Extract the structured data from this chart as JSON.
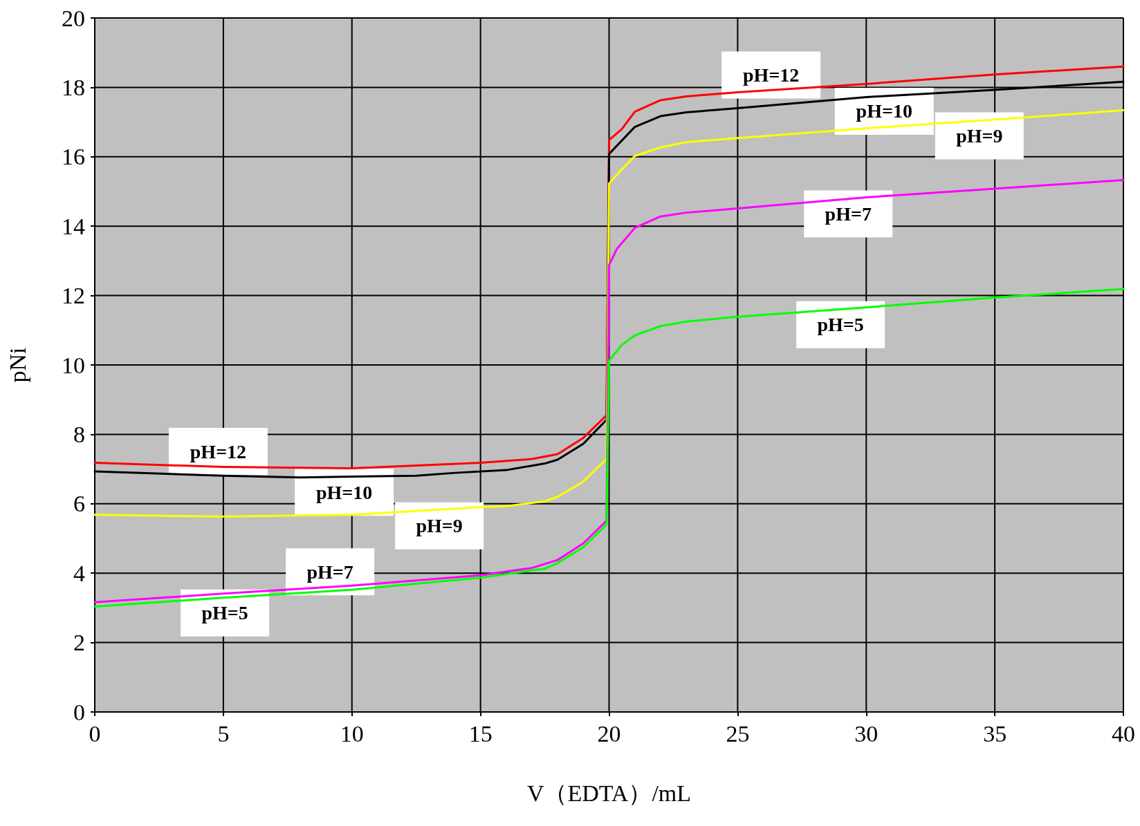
{
  "chart_data": {
    "type": "line",
    "xlabel": "V（EDTA）/mL",
    "ylabel": "pNi",
    "xlim": [
      0,
      40
    ],
    "xticks": [
      0,
      5,
      10,
      15,
      20,
      25,
      30,
      35,
      40
    ],
    "ylim": [
      0,
      20
    ],
    "yticks": [
      0,
      2,
      4,
      6,
      8,
      10,
      12,
      14,
      16,
      18,
      20
    ],
    "grid": true,
    "marker": "none",
    "line_style": "solid",
    "series": [
      {
        "color": "#ff0000",
        "x": [
          0,
          5,
          10,
          15,
          17,
          18,
          19,
          19.9,
          20,
          20.5,
          21,
          22,
          23,
          25,
          30,
          35,
          40
        ],
        "values": [
          7.18,
          7.06,
          7.02,
          7.18,
          7.29,
          7.43,
          7.9,
          8.55,
          16.48,
          16.8,
          17.3,
          17.63,
          17.74,
          17.86,
          18.1,
          18.37,
          18.6
        ]
      },
      {
        "color": "#000000",
        "x": [
          0,
          5,
          8,
          12.5,
          14,
          16,
          17.5,
          18,
          19,
          19.9,
          20,
          21,
          22,
          23,
          25,
          30,
          35,
          40
        ],
        "values": [
          6.93,
          6.81,
          6.76,
          6.81,
          6.89,
          6.97,
          7.16,
          7.27,
          7.73,
          8.42,
          16.08,
          16.86,
          17.17,
          17.28,
          17.4,
          17.72,
          17.93,
          18.16
        ]
      },
      {
        "color": "#ffff00",
        "x": [
          0,
          5,
          10,
          15,
          16,
          17.5,
          18,
          19,
          19.9,
          20,
          20.5,
          21,
          22,
          23,
          25,
          30,
          35,
          40
        ],
        "values": [
          5.68,
          5.63,
          5.68,
          5.9,
          5.93,
          6.07,
          6.2,
          6.64,
          7.29,
          15.23,
          15.64,
          16.02,
          16.27,
          16.42,
          16.54,
          16.82,
          17.07,
          17.34
        ]
      },
      {
        "color": "#ff00ff",
        "x": [
          0,
          5,
          10,
          15,
          17,
          18,
          19,
          19.9,
          20,
          20.3,
          21,
          22,
          23,
          25,
          30,
          35,
          40
        ],
        "values": [
          3.16,
          3.41,
          3.64,
          3.94,
          4.15,
          4.38,
          4.86,
          5.51,
          12.88,
          13.34,
          13.95,
          14.28,
          14.39,
          14.51,
          14.83,
          15.08,
          15.33
        ]
      },
      {
        "color": "#00ff00",
        "x": [
          0,
          5,
          10,
          15,
          17.5,
          18,
          19,
          19.9,
          20,
          20.5,
          21,
          22,
          23,
          25,
          30,
          35,
          40
        ],
        "values": [
          3.04,
          3.29,
          3.52,
          3.87,
          4.13,
          4.29,
          4.75,
          5.4,
          10.12,
          10.58,
          10.85,
          11.12,
          11.25,
          11.39,
          11.66,
          11.94,
          12.19
        ]
      }
    ],
    "annotations": [
      {
        "text": "pH=12",
        "x": 4.8,
        "y": 7.07
      },
      {
        "text": "pH=12",
        "x": 26.3,
        "y": 17.92
      },
      {
        "text": "pH=10",
        "x": 9.7,
        "y": 6.77
      },
      {
        "text": "pH=10",
        "x": 30.7,
        "y": 17.75
      },
      {
        "text": "pH=9",
        "x": 13.4,
        "y": 5.8
      },
      {
        "text": "pH=9",
        "x": 34.4,
        "y": 17.04
      },
      {
        "text": "pH=7",
        "x": 9.15,
        "y": 3.6
      },
      {
        "text": "pH=7",
        "x": 29.3,
        "y": 14.79
      },
      {
        "text": "pH=5",
        "x": 5.06,
        "y": 3.29
      },
      {
        "text": "pH=5",
        "x": 29.0,
        "y": 11.6
      }
    ]
  }
}
